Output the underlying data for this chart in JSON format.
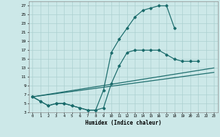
{
  "xlabel": "Humidex (Indice chaleur)",
  "xlim": [
    -0.5,
    23.5
  ],
  "ylim": [
    3,
    28
  ],
  "yticks": [
    3,
    5,
    7,
    9,
    11,
    13,
    15,
    17,
    19,
    21,
    23,
    25,
    27
  ],
  "xticks": [
    0,
    1,
    2,
    3,
    4,
    5,
    6,
    7,
    8,
    9,
    10,
    11,
    12,
    13,
    14,
    15,
    16,
    17,
    18,
    19,
    20,
    21,
    22,
    23
  ],
  "bg_color": "#cce8e8",
  "grid_color": "#aacfcf",
  "line_color": "#1a6b6b",
  "line1_x": [
    0,
    1,
    2,
    3,
    4,
    5,
    6,
    7,
    8,
    9,
    10,
    11,
    12,
    13,
    14,
    15,
    16,
    17,
    18
  ],
  "line1_y": [
    6.5,
    5.5,
    4.5,
    5.0,
    5.0,
    4.5,
    4.0,
    3.5,
    3.5,
    8.0,
    16.5,
    19.5,
    22.0,
    24.5,
    26.0,
    26.5,
    27.0,
    27.0,
    22.0
  ],
  "line2_x": [
    0,
    1,
    2,
    3,
    4,
    5,
    6,
    7,
    8,
    9,
    10,
    11,
    12,
    13,
    14,
    15,
    16,
    17,
    18,
    19,
    20,
    21
  ],
  "line2_y": [
    6.5,
    5.5,
    4.5,
    5.0,
    5.0,
    4.5,
    4.0,
    3.5,
    3.5,
    4.0,
    9.5,
    13.5,
    16.5,
    17.0,
    17.0,
    17.0,
    17.0,
    16.0,
    15.0,
    14.5,
    14.5,
    14.5
  ],
  "line3_x": [
    0,
    23
  ],
  "line3_y": [
    6.5,
    13.0
  ],
  "line4_x": [
    0,
    23
  ],
  "line4_y": [
    6.5,
    12.0
  ]
}
